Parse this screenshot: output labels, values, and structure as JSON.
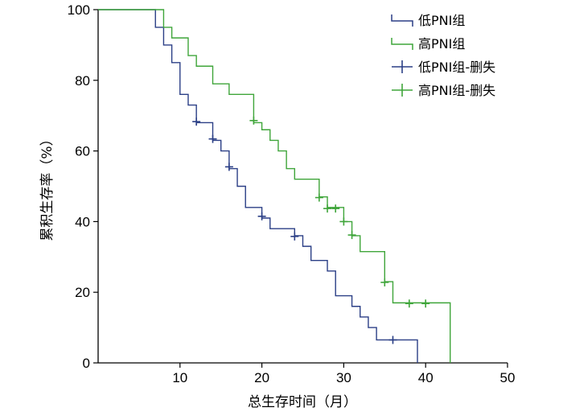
{
  "chart_data": {
    "type": "line",
    "subtype": "kaplan-meier-step",
    "xlabel": "总生存时间（月）",
    "ylabel": "累积生存率（%）",
    "xlim": [
      0,
      50
    ],
    "ylim": [
      0,
      100
    ],
    "xticks": [
      10,
      20,
      30,
      40,
      50
    ],
    "yticks": [
      0,
      20,
      40,
      60,
      80,
      100
    ],
    "grid": false,
    "legend_position": "top-right",
    "legend": [
      {
        "label": "低PNI组",
        "kind": "line",
        "color": "#2b3f86"
      },
      {
        "label": "高PNI组",
        "kind": "line",
        "color": "#3fa53a"
      },
      {
        "label": "低PNI组-删失",
        "kind": "marker",
        "color": "#2b3f86"
      },
      {
        "label": "高PNI组-删失",
        "kind": "marker",
        "color": "#3fa53a"
      }
    ],
    "series": [
      {
        "key": "low",
        "color": "#2b3f86",
        "steps": [
          [
            0,
            100
          ],
          [
            7,
            95
          ],
          [
            8,
            90
          ],
          [
            9,
            85
          ],
          [
            10,
            76
          ],
          [
            11,
            73
          ],
          [
            12,
            68
          ],
          [
            14,
            63
          ],
          [
            15,
            60
          ],
          [
            16,
            55
          ],
          [
            17,
            50
          ],
          [
            18,
            44
          ],
          [
            20,
            41
          ],
          [
            21,
            38
          ],
          [
            24,
            36
          ],
          [
            25,
            33
          ],
          [
            26,
            29
          ],
          [
            28,
            26
          ],
          [
            29,
            19
          ],
          [
            31,
            16
          ],
          [
            32,
            13
          ],
          [
            33,
            10
          ],
          [
            34,
            6.5
          ],
          [
            39,
            0
          ]
        ],
        "end_x": 39,
        "censored": [
          [
            12,
            68.3
          ],
          [
            14,
            63.4
          ],
          [
            16,
            55.5
          ],
          [
            20,
            41.5
          ],
          [
            24,
            35.8
          ],
          [
            36,
            6.5
          ]
        ]
      },
      {
        "key": "high",
        "color": "#3fa53a",
        "steps": [
          [
            0,
            100
          ],
          [
            8,
            95
          ],
          [
            9,
            92
          ],
          [
            11,
            87
          ],
          [
            12,
            84
          ],
          [
            14,
            79
          ],
          [
            16,
            76
          ],
          [
            19,
            68
          ],
          [
            20,
            66
          ],
          [
            21,
            63
          ],
          [
            22,
            60
          ],
          [
            23,
            55
          ],
          [
            24,
            52
          ],
          [
            27,
            47
          ],
          [
            28,
            44
          ],
          [
            30,
            40
          ],
          [
            31,
            36
          ],
          [
            32,
            31.5
          ],
          [
            35,
            23
          ],
          [
            36,
            17
          ],
          [
            43,
            0
          ]
        ],
        "end_x": 43,
        "censored": [
          [
            19,
            68.6
          ],
          [
            27,
            46.8
          ],
          [
            28,
            43.7
          ],
          [
            29,
            43.7
          ],
          [
            30,
            40.0
          ],
          [
            31,
            36.2
          ],
          [
            35,
            22.8
          ],
          [
            38,
            16.8
          ],
          [
            40,
            16.8
          ]
        ]
      }
    ]
  }
}
